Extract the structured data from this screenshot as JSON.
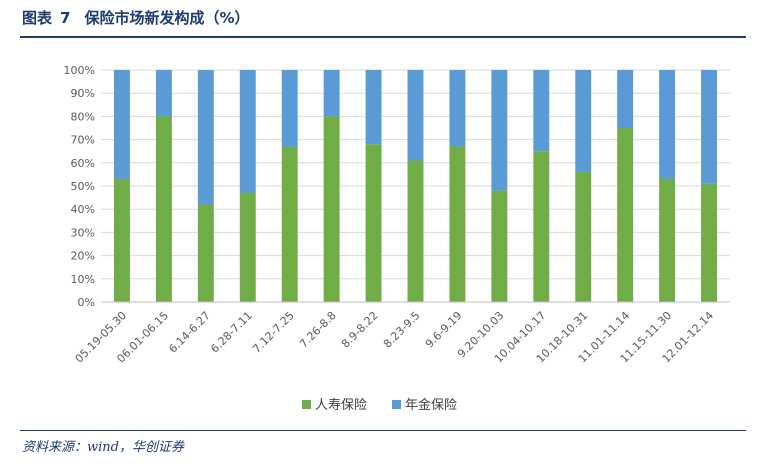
{
  "header": {
    "figure_label": "图表",
    "figure_number": "7",
    "title": "保险市场新发构成（%）"
  },
  "footer": {
    "source": "资料来源：wind，华创证券"
  },
  "colors": {
    "series1": "#70ad47",
    "series2": "#5b9bd5",
    "header": "#1f3b6e",
    "grid": "#d9d9d9"
  },
  "chart_data": {
    "type": "bar",
    "stacked": true,
    "title": "保险市场新发构成（%）",
    "xlabel": "",
    "ylabel": "",
    "ylim": [
      0,
      100
    ],
    "yticks": [
      "0%",
      "10%",
      "20%",
      "30%",
      "40%",
      "50%",
      "60%",
      "70%",
      "80%",
      "90%",
      "100%"
    ],
    "grid": true,
    "legend_position": "bottom",
    "categories": [
      "05.19-05.30",
      "06.01-06.15",
      "6.14-6.27",
      "6.28-7.11",
      "7.12-7.25",
      "7.26-8.8",
      "8.9-8.22",
      "8.23-9.5",
      "9.6-9.19",
      "9.20-10.03",
      "10.04-10.17",
      "10.18-10.31",
      "11.01-11.14",
      "11.15-11.30",
      "12.01-12.14"
    ],
    "series": [
      {
        "name": "人寿保险",
        "values": [
          53,
          80,
          42,
          47,
          67,
          80,
          68,
          61,
          67,
          48,
          65,
          56,
          75,
          53,
          51
        ]
      },
      {
        "name": "年金保险",
        "values": [
          47,
          20,
          58,
          53,
          33,
          20,
          32,
          39,
          33,
          52,
          35,
          44,
          25,
          47,
          49
        ]
      }
    ]
  }
}
